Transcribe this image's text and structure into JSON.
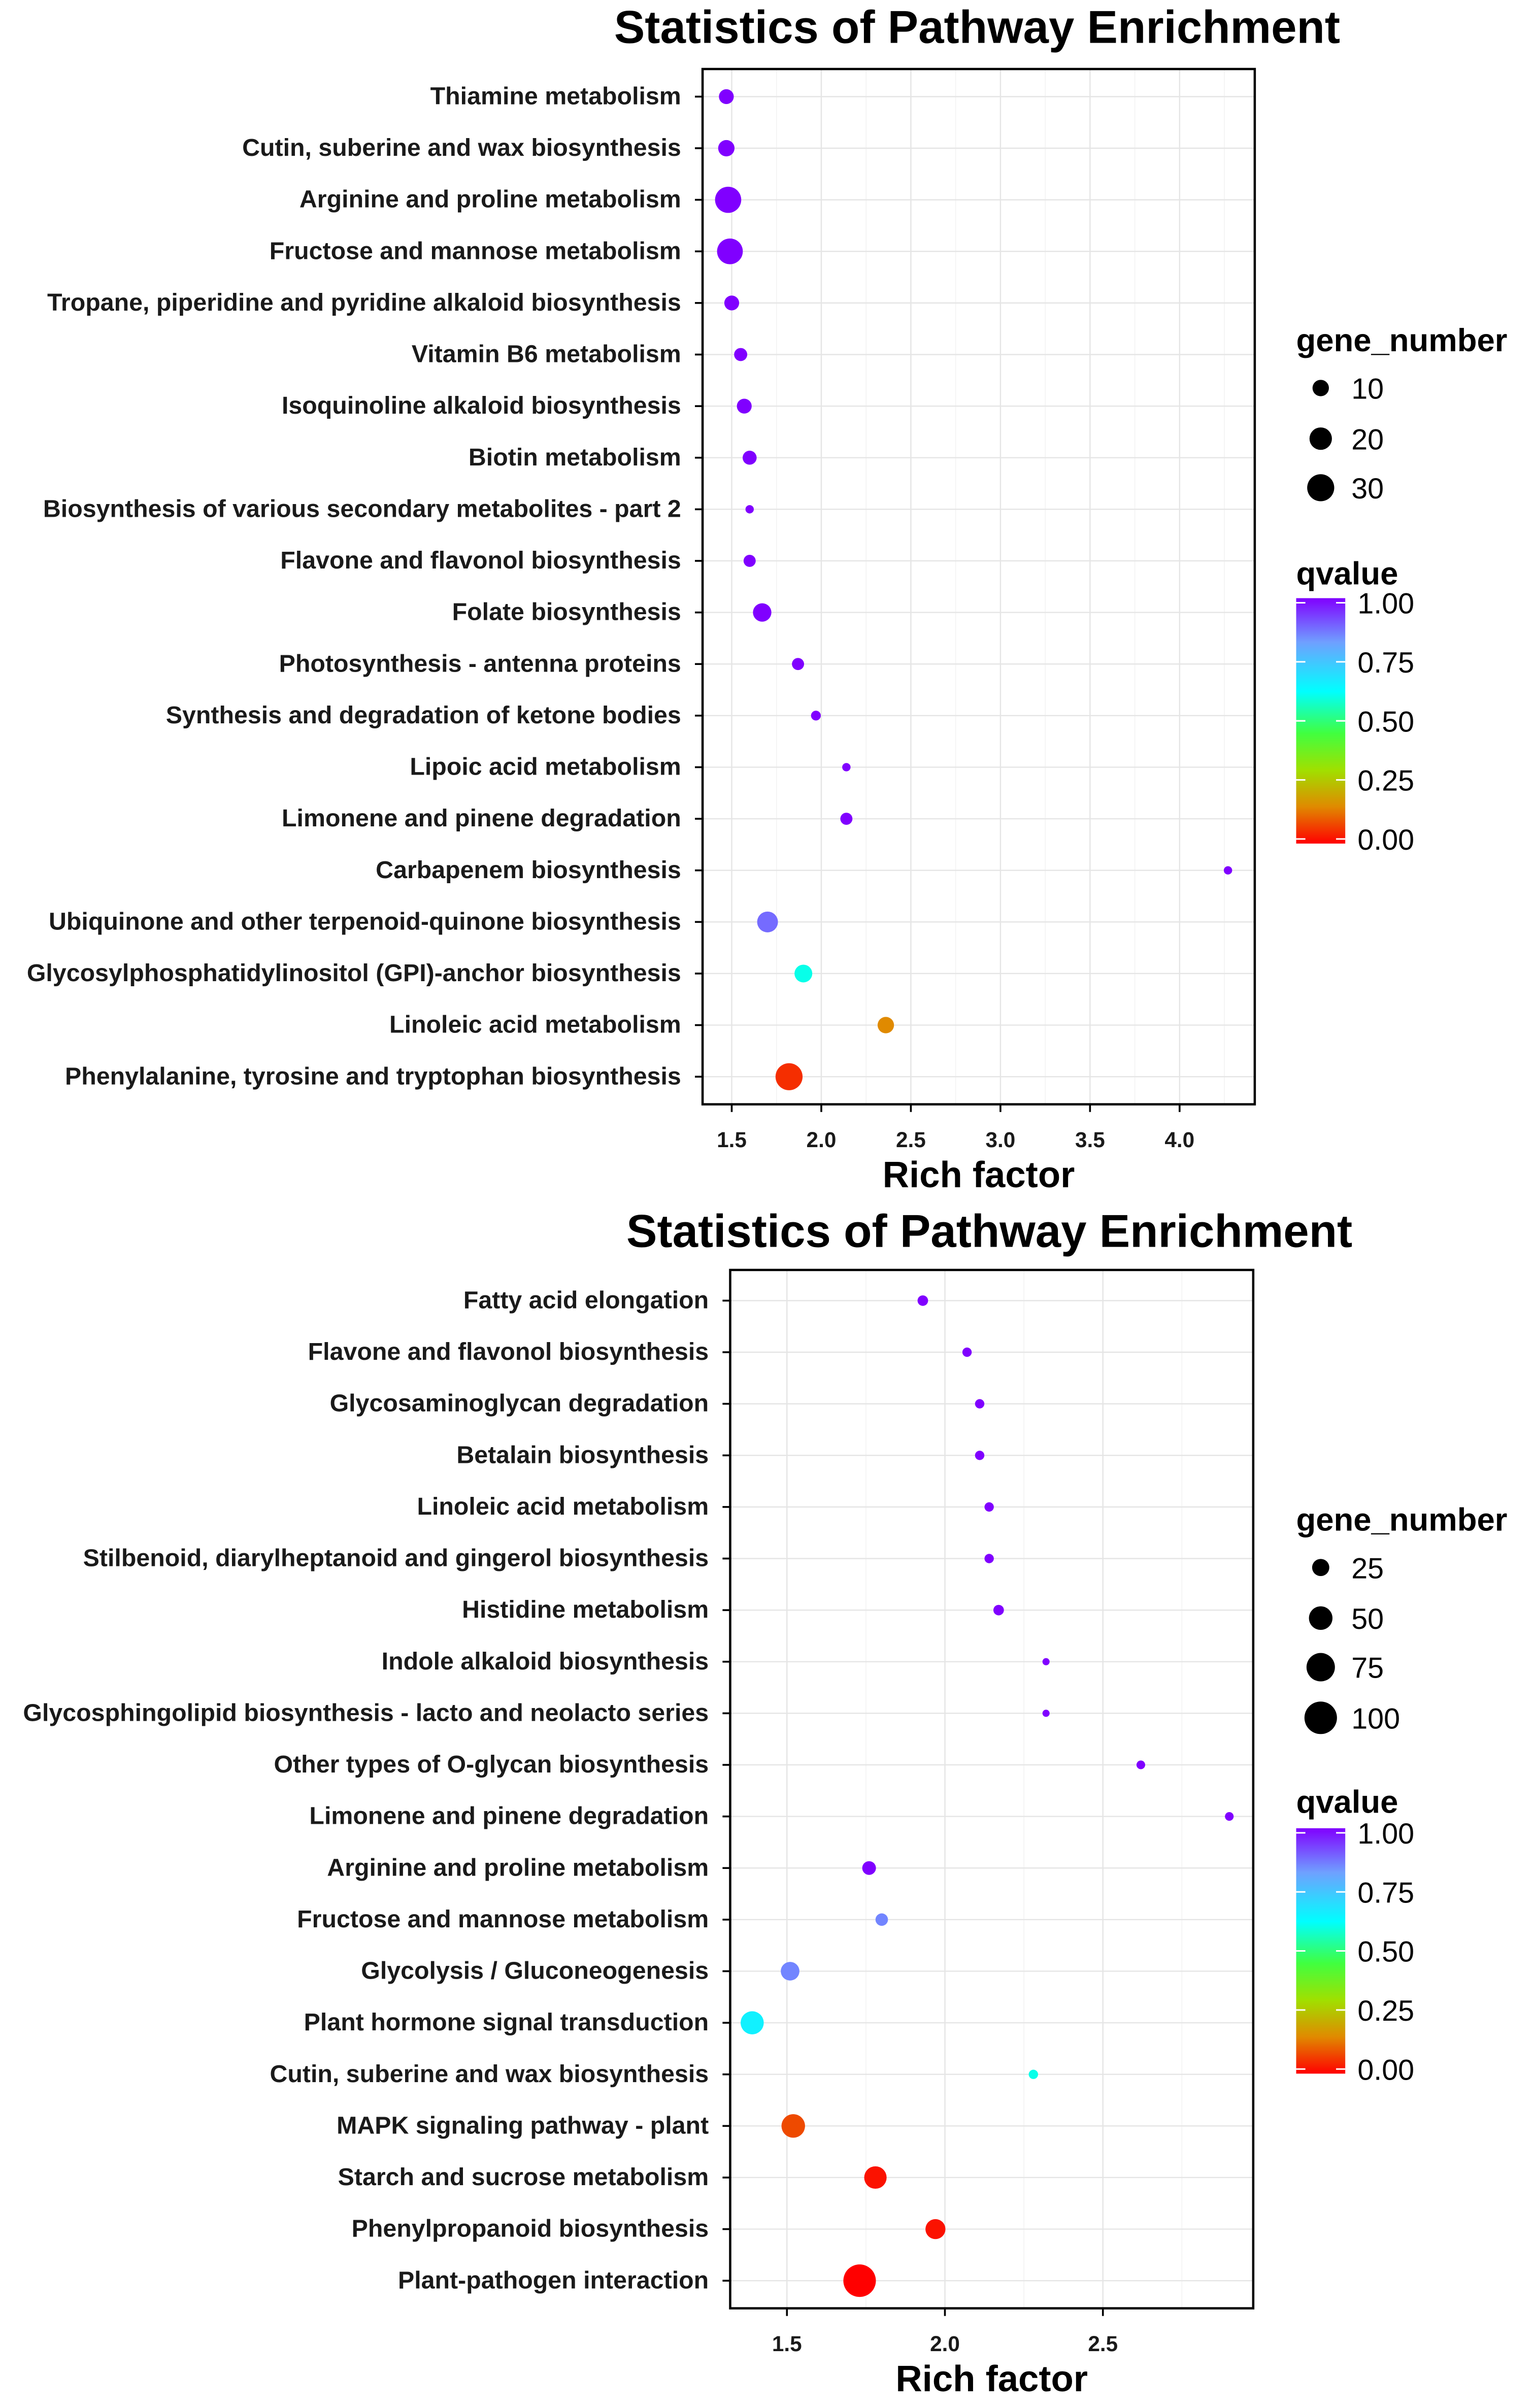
{
  "chart_data": [
    {
      "type": "scatter",
      "title": "Statistics of Pathway Enrichment",
      "xlabel": "Rich factor",
      "ylabel": "",
      "xticks": [
        "1.5",
        "2.0",
        "2.5",
        "3.0",
        "3.5",
        "4.0"
      ],
      "xtick_values": [
        1.5,
        2.0,
        2.5,
        3.0,
        3.5,
        4.0
      ],
      "grid": true,
      "size_legend": {
        "title": "gene_number",
        "values": [
          10,
          20,
          30
        ]
      },
      "color_legend": {
        "title": "qvalue",
        "ticks": [
          "1.00",
          "0.75",
          "0.50",
          "0.25",
          "0.00"
        ]
      },
      "points": [
        {
          "pathway": "Thiamine metabolism",
          "rich_factor": 1.47,
          "gene_number": 8,
          "qvalue": 1.0
        },
        {
          "pathway": "Cutin, suberine and wax biosynthesis",
          "rich_factor": 1.47,
          "gene_number": 10,
          "qvalue": 1.0
        },
        {
          "pathway": "Arginine and proline metabolism",
          "rich_factor": 1.48,
          "gene_number": 28,
          "qvalue": 1.0
        },
        {
          "pathway": "Fructose and mannose metabolism",
          "rich_factor": 1.49,
          "gene_number": 27,
          "qvalue": 1.0
        },
        {
          "pathway": "Tropane, piperidine and pyridine alkaloid biosynthesis",
          "rich_factor": 1.5,
          "gene_number": 8,
          "qvalue": 1.0
        },
        {
          "pathway": "Vitamin B6 metabolism",
          "rich_factor": 1.55,
          "gene_number": 6,
          "qvalue": 1.0
        },
        {
          "pathway": "Isoquinoline alkaloid biosynthesis",
          "rich_factor": 1.57,
          "gene_number": 8,
          "qvalue": 1.0
        },
        {
          "pathway": "Biotin metabolism",
          "rich_factor": 1.6,
          "gene_number": 7,
          "qvalue": 1.0
        },
        {
          "pathway": "Biosynthesis of various secondary metabolites - part 2",
          "rich_factor": 1.6,
          "gene_number": 2,
          "qvalue": 1.0
        },
        {
          "pathway": "Flavone and flavonol biosynthesis",
          "rich_factor": 1.6,
          "gene_number": 5,
          "qvalue": 1.0
        },
        {
          "pathway": "Folate biosynthesis",
          "rich_factor": 1.67,
          "gene_number": 13,
          "qvalue": 1.0
        },
        {
          "pathway": "Photosynthesis - antenna proteins",
          "rich_factor": 1.87,
          "gene_number": 5,
          "qvalue": 1.0
        },
        {
          "pathway": "Synthesis and degradation of ketone bodies",
          "rich_factor": 1.97,
          "gene_number": 3,
          "qvalue": 1.0
        },
        {
          "pathway": "Lipoic acid metabolism",
          "rich_factor": 2.14,
          "gene_number": 2,
          "qvalue": 1.0
        },
        {
          "pathway": "Limonene and pinene degradation",
          "rich_factor": 2.14,
          "gene_number": 5,
          "qvalue": 1.0
        },
        {
          "pathway": "Carbapenem biosynthesis",
          "rich_factor": 4.27,
          "gene_number": 2,
          "qvalue": 1.0
        },
        {
          "pathway": "Ubiquinone and other terpenoid-quinone biosynthesis",
          "rich_factor": 1.7,
          "gene_number": 17,
          "qvalue": 0.88
        },
        {
          "pathway": "Glycosylphosphatidylinositol (GPI)-anchor biosynthesis",
          "rich_factor": 1.9,
          "gene_number": 12,
          "qvalue": 0.6
        },
        {
          "pathway": "Linoleic acid metabolism",
          "rich_factor": 2.36,
          "gene_number": 10,
          "qvalue": 0.15
        },
        {
          "pathway": "Phenylalanine, tyrosine and tryptophan biosynthesis",
          "rich_factor": 1.82,
          "gene_number": 30,
          "qvalue": 0.05
        }
      ]
    },
    {
      "type": "scatter",
      "title": "Statistics of Pathway Enrichment",
      "xlabel": "Rich factor",
      "ylabel": "",
      "xticks": [
        "1.5",
        "2.0",
        "2.5"
      ],
      "xtick_values": [
        1.5,
        2.0,
        2.5
      ],
      "grid": true,
      "size_legend": {
        "title": "gene_number",
        "values": [
          25,
          50,
          75,
          100
        ]
      },
      "color_legend": {
        "title": "qvalue",
        "ticks": [
          "1.00",
          "0.75",
          "0.50",
          "0.25",
          "0.00"
        ]
      },
      "points": [
        {
          "pathway": "Fatty acid elongation",
          "rich_factor": 1.93,
          "gene_number": 8,
          "qvalue": 1.0
        },
        {
          "pathway": "Flavone and flavonol biosynthesis",
          "rich_factor": 2.07,
          "gene_number": 6,
          "qvalue": 1.0
        },
        {
          "pathway": "Glycosaminoglycan degradation",
          "rich_factor": 2.11,
          "gene_number": 6,
          "qvalue": 1.0
        },
        {
          "pathway": "Betalain biosynthesis",
          "rich_factor": 2.11,
          "gene_number": 6,
          "qvalue": 1.0
        },
        {
          "pathway": "Linoleic acid metabolism",
          "rich_factor": 2.14,
          "gene_number": 6,
          "qvalue": 1.0
        },
        {
          "pathway": "Stilbenoid, diarylheptanoid and gingerol biosynthesis",
          "rich_factor": 2.14,
          "gene_number": 6,
          "qvalue": 1.0
        },
        {
          "pathway": "Histidine metabolism",
          "rich_factor": 2.17,
          "gene_number": 8,
          "qvalue": 1.0
        },
        {
          "pathway": "Indole alkaloid biosynthesis",
          "rich_factor": 2.32,
          "gene_number": 3,
          "qvalue": 1.0
        },
        {
          "pathway": "Glycosphingolipid biosynthesis - lacto and neolacto series",
          "rich_factor": 2.32,
          "gene_number": 3,
          "qvalue": 1.0
        },
        {
          "pathway": "Other types of O-glycan biosynthesis",
          "rich_factor": 2.62,
          "gene_number": 5,
          "qvalue": 1.0
        },
        {
          "pathway": "Limonene and pinene degradation",
          "rich_factor": 2.9,
          "gene_number": 5,
          "qvalue": 1.0
        },
        {
          "pathway": "Arginine and proline metabolism",
          "rich_factor": 1.76,
          "gene_number": 15,
          "qvalue": 1.0
        },
        {
          "pathway": "Fructose and mannose metabolism",
          "rich_factor": 1.8,
          "gene_number": 12,
          "qvalue": 0.85
        },
        {
          "pathway": "Glycolysis / Gluconeogenesis",
          "rich_factor": 1.51,
          "gene_number": 30,
          "qvalue": 0.85
        },
        {
          "pathway": "Plant hormone signal transduction",
          "rich_factor": 1.39,
          "gene_number": 48,
          "qvalue": 0.65
        },
        {
          "pathway": "Cutin, suberine and wax biosynthesis",
          "rich_factor": 2.28,
          "gene_number": 6,
          "qvalue": 0.6
        },
        {
          "pathway": "MAPK signaling pathway - plant",
          "rich_factor": 1.52,
          "gene_number": 50,
          "qvalue": 0.08
        },
        {
          "pathway": "Starch and sucrose metabolism",
          "rich_factor": 1.78,
          "gene_number": 45,
          "qvalue": 0.02
        },
        {
          "pathway": "Phenylpropanoid biosynthesis",
          "rich_factor": 1.97,
          "gene_number": 35,
          "qvalue": 0.02
        },
        {
          "pathway": "Plant-pathogen interaction",
          "rich_factor": 1.73,
          "gene_number": 100,
          "qvalue": 0.0
        }
      ]
    }
  ]
}
